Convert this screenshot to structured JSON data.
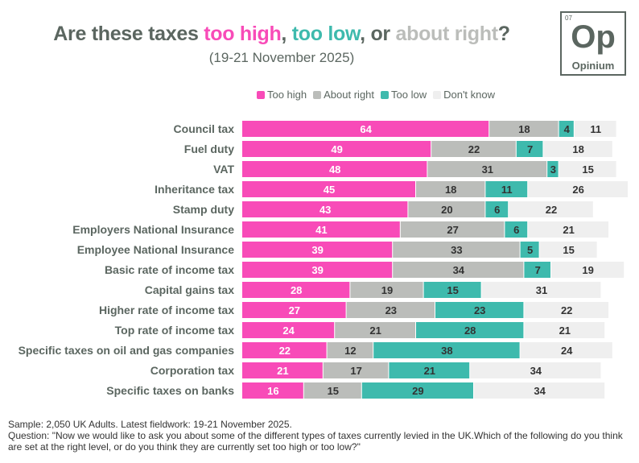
{
  "title": {
    "part1": "Are these taxes ",
    "high": "too high",
    "sep1": ", ",
    "low": "too low",
    "sep2": ", or ",
    "right": "about right",
    "end": "?"
  },
  "subtitle": "(19-21 November 2025)",
  "logo": {
    "number": "07",
    "symbol": "Op",
    "name": "Opinium"
  },
  "colors": {
    "too_high": "#f84bb8",
    "about_right": "#bbbdba",
    "too_low": "#3ebaad",
    "dont_know": "#efefef",
    "text": "#5b6660"
  },
  "chart_data": {
    "type": "bar",
    "orientation": "horizontal",
    "stacked": true,
    "title": "Are these taxes too high, too low, or about right?",
    "legend_position": "top",
    "categories": [
      "Council tax",
      "Fuel duty",
      "VAT",
      "Inheritance tax",
      "Stamp duty",
      "Employers National Insurance",
      "Employee National Insurance",
      "Basic rate of income tax",
      "Capital gains tax",
      "Higher rate of income tax",
      "Top rate of income tax",
      "Specific taxes on oil and gas companies",
      "Corporation tax",
      "Specific taxes on banks"
    ],
    "series": [
      {
        "name": "Too high",
        "values": [
          64,
          49,
          48,
          45,
          43,
          41,
          39,
          39,
          28,
          27,
          24,
          22,
          21,
          16
        ]
      },
      {
        "name": "About right",
        "values": [
          18,
          22,
          31,
          18,
          20,
          27,
          33,
          34,
          19,
          23,
          21,
          12,
          17,
          15
        ]
      },
      {
        "name": "Too low",
        "values": [
          4,
          7,
          3,
          11,
          6,
          6,
          5,
          7,
          15,
          23,
          28,
          38,
          21,
          29
        ]
      },
      {
        "name": "Don't know",
        "values": [
          11,
          18,
          15,
          26,
          22,
          21,
          15,
          19,
          31,
          22,
          21,
          24,
          34,
          34
        ]
      }
    ]
  },
  "footer": {
    "sample": "Sample: 2,050 UK Adults. Latest fieldwork: 19-21 November 2025.",
    "question": "Question: \"Now we would like to ask you about some of the different types of taxes currently levied in the UK.Which of the following do you think are set at the right level, or do you think they are currently set too high or too low?\""
  }
}
